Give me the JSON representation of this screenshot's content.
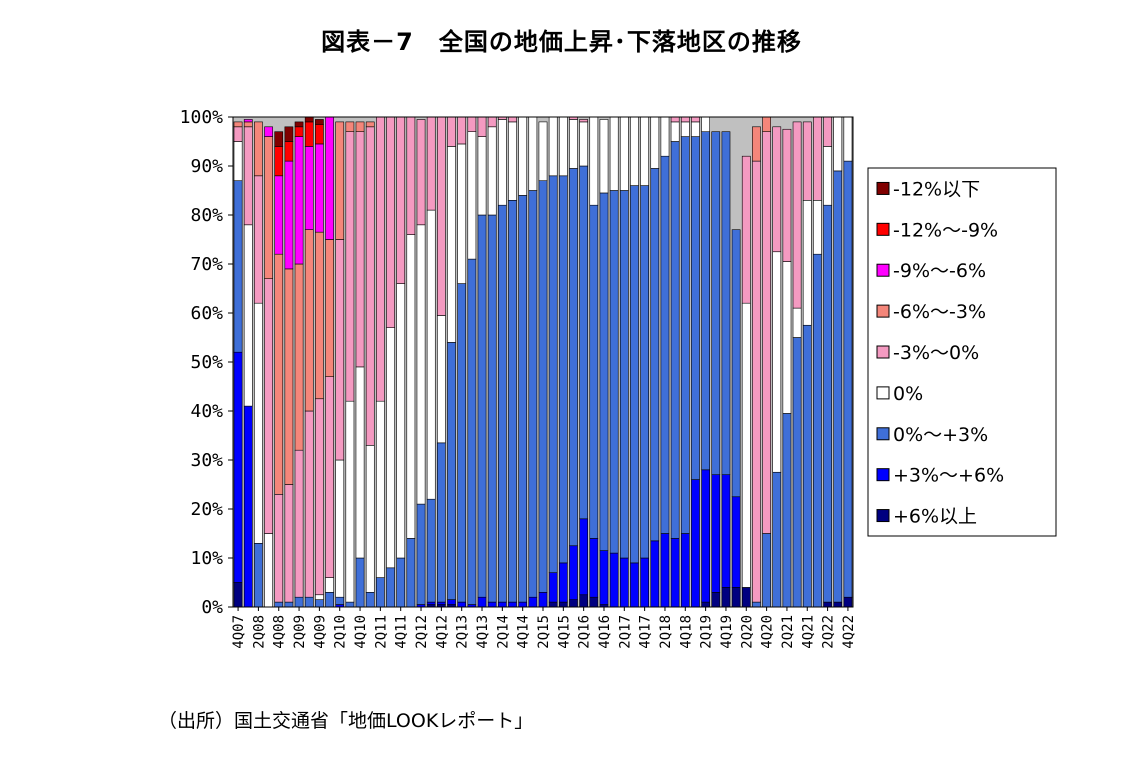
{
  "title": "図表－7　全国の地価上昇･下落地区の推移",
  "source": "（出所）国土交通省「地価LOOKレポート」",
  "chart_data": {
    "type": "bar",
    "stacked": true,
    "title": "図表－7　全国の地価上昇･下落地区の推移",
    "xlabel": "",
    "ylabel": "",
    "ylim": [
      0,
      100
    ],
    "yticks": [
      "0%",
      "10%",
      "20%",
      "30%",
      "40%",
      "50%",
      "60%",
      "70%",
      "80%",
      "90%",
      "100%"
    ],
    "legend_position": "right",
    "categories": [
      "4Q07",
      "1Q08",
      "2Q08",
      "3Q08",
      "4Q08",
      "1Q09",
      "2Q09",
      "3Q09",
      "4Q09",
      "1Q10",
      "2Q10",
      "3Q10",
      "4Q10",
      "1Q11",
      "2Q11",
      "3Q11",
      "4Q11",
      "1Q12",
      "2Q12",
      "3Q12",
      "4Q12",
      "1Q13",
      "2Q13",
      "3Q13",
      "4Q13",
      "1Q14",
      "2Q14",
      "3Q14",
      "4Q14",
      "1Q15",
      "2Q15",
      "3Q15",
      "4Q15",
      "1Q16",
      "2Q16",
      "3Q16",
      "4Q16",
      "1Q17",
      "2Q17",
      "3Q17",
      "4Q17",
      "1Q18",
      "2Q18",
      "3Q18",
      "4Q18",
      "1Q19",
      "2Q19",
      "3Q19",
      "4Q19",
      "1Q20",
      "2Q20",
      "3Q20",
      "4Q20",
      "1Q21",
      "2Q21",
      "3Q21",
      "4Q21",
      "1Q22",
      "2Q22",
      "3Q22",
      "4Q22"
    ],
    "tick_labels": [
      "4Q07",
      "2Q08",
      "4Q08",
      "2Q09",
      "4Q09",
      "2Q10",
      "4Q10",
      "2Q11",
      "4Q11",
      "2Q12",
      "4Q12",
      "2Q13",
      "4Q13",
      "2Q14",
      "4Q14",
      "2Q15",
      "4Q15",
      "2Q16",
      "4Q16",
      "2Q17",
      "4Q17",
      "2Q18",
      "4Q18",
      "2Q19",
      "4Q19",
      "2Q20",
      "4Q20",
      "2Q21",
      "4Q21",
      "2Q22",
      "4Q22"
    ],
    "series": [
      {
        "name": "+6%以上",
        "color": "#000080",
        "values": [
          5,
          0,
          0,
          0,
          0,
          0,
          0,
          0,
          0,
          0,
          0,
          0,
          0,
          0,
          0,
          0,
          0,
          0,
          0,
          0.5,
          0.5,
          0.5,
          0,
          0,
          0,
          0,
          0,
          0,
          0,
          0,
          0,
          1,
          1,
          1.5,
          2.5,
          2,
          0.5,
          0,
          0,
          0,
          0,
          0,
          0,
          0,
          0,
          0,
          1,
          3,
          4,
          4,
          4,
          0,
          0,
          0,
          0,
          0,
          0,
          0,
          1,
          1,
          2
        ]
      },
      {
        "name": "+3%～+6%",
        "color": "#0000FF",
        "values": [
          47,
          41,
          0,
          0,
          0,
          0,
          0,
          0,
          0,
          0,
          0.5,
          0,
          0,
          0,
          0,
          0,
          0,
          0,
          0.5,
          0.5,
          0.5,
          1,
          1,
          0.5,
          2,
          1,
          1,
          1,
          1,
          2,
          3,
          6,
          8,
          11,
          15.5,
          12,
          11,
          11,
          10,
          9,
          10,
          13.5,
          15,
          14,
          15,
          26,
          27,
          24,
          23,
          18.5,
          0,
          0,
          0,
          0,
          0,
          0,
          0,
          0,
          0,
          0,
          0
        ]
      },
      {
        "name": "0%～+3%",
        "color": "#3F6FD8",
        "values": [
          35,
          0,
          13,
          0,
          1,
          1,
          2,
          2,
          1.5,
          3,
          1.5,
          1,
          10,
          3,
          6,
          8,
          10,
          14,
          20.5,
          21,
          32.5,
          52.5,
          65,
          70.5,
          78,
          79,
          81,
          82,
          83,
          83,
          84,
          81,
          79,
          77,
          72,
          68,
          73,
          74,
          75,
          77,
          76,
          76,
          77,
          81,
          81,
          70,
          69,
          70,
          70,
          54.5,
          0,
          1,
          15,
          27.5,
          39.5,
          55,
          57.5,
          72,
          81,
          88,
          89
        ]
      },
      {
        "name": "0%",
        "color": "#FFFFFF",
        "values": [
          8,
          37,
          49,
          15,
          0,
          0,
          0,
          0,
          1,
          3,
          28,
          41,
          39,
          30,
          36,
          49,
          56,
          62,
          57,
          59,
          26,
          40,
          28.5,
          26,
          16,
          18,
          17.5,
          16,
          16,
          15,
          12,
          12,
          12,
          10,
          9,
          18,
          15,
          15,
          15,
          14,
          14,
          10.5,
          8,
          4,
          3,
          3,
          3,
          0,
          0,
          0,
          58,
          0,
          0,
          45,
          31,
          6,
          25.5,
          11,
          12,
          11,
          9
        ]
      },
      {
        "name": "-3%～0%",
        "color": "#F49AC1",
        "values": [
          3,
          20,
          26,
          52,
          22,
          24,
          30,
          38,
          40,
          41,
          45,
          55,
          48,
          65,
          58,
          43,
          34,
          24,
          21.5,
          19,
          40.5,
          6,
          5.5,
          3,
          4,
          2,
          0.5,
          1,
          0,
          0,
          0,
          0,
          0,
          0.5,
          0.5,
          0,
          0,
          0,
          0,
          0,
          0,
          0,
          0,
          1,
          1,
          1,
          0,
          0,
          0,
          0,
          30,
          90,
          82,
          25.5,
          27,
          38,
          16,
          17,
          6,
          0,
          0
        ]
      },
      {
        "name": "-6%～-3%",
        "color": "#F4867A",
        "values": [
          1,
          1,
          11,
          29,
          49,
          44,
          38,
          37,
          34,
          28,
          24,
          2,
          2,
          1,
          0,
          0,
          0,
          0,
          0,
          0,
          0,
          0,
          0,
          0,
          0,
          0,
          0,
          0,
          0,
          0,
          0,
          0,
          0,
          0,
          0,
          0,
          0,
          0,
          0,
          0,
          0,
          0,
          0,
          0,
          0,
          0,
          0,
          0,
          0,
          0,
          0,
          7,
          3,
          0,
          0,
          0,
          0,
          0,
          0,
          0,
          0
        ]
      },
      {
        "name": "-9%～-6%",
        "color": "#FF00FF",
        "values": [
          0,
          0.5,
          0,
          2,
          16,
          22,
          26,
          17,
          18,
          25,
          0,
          0,
          0,
          0,
          0,
          0,
          0,
          0,
          0,
          0,
          0,
          0,
          0,
          0,
          0,
          0,
          0,
          0,
          0,
          0,
          0,
          0,
          0,
          0,
          0,
          0,
          0,
          0,
          0,
          0,
          0,
          0,
          0,
          0,
          0,
          0,
          0,
          0,
          0,
          0,
          0,
          0,
          0,
          0,
          0,
          0,
          0,
          0,
          0,
          0,
          0
        ]
      },
      {
        "name": "-12%～-9%",
        "color": "#FF0000",
        "values": [
          0,
          0,
          0,
          0,
          6,
          4,
          2,
          5,
          4,
          0,
          0,
          0,
          0,
          0,
          0,
          0,
          0,
          0,
          0,
          0,
          0,
          0,
          0,
          0,
          0,
          0,
          0,
          0,
          0,
          0,
          0,
          0,
          0,
          0,
          0,
          0,
          0,
          0,
          0,
          0,
          0,
          0,
          0,
          0,
          0,
          0,
          0,
          0,
          0,
          0,
          0,
          0,
          0,
          0,
          0,
          0,
          0,
          0,
          0,
          0,
          0
        ]
      },
      {
        "name": "-12%以下",
        "color": "#800000",
        "values": [
          0,
          0,
          0,
          0,
          3,
          3,
          1,
          1,
          1,
          0,
          0,
          0,
          0,
          0,
          0,
          0,
          0,
          0,
          0,
          0,
          0,
          0,
          0,
          0,
          0,
          0,
          0,
          0,
          0,
          0,
          0,
          0,
          0,
          0,
          0,
          0,
          0,
          0,
          0,
          0,
          0,
          0,
          0,
          0,
          0,
          0,
          0,
          0,
          0,
          0,
          0,
          0,
          0,
          0,
          0,
          0,
          0,
          0,
          0,
          0,
          0
        ]
      }
    ],
    "legend_order": [
      "-12%以下",
      "-12%～-9%",
      "-9%～-6%",
      "-6%～-3%",
      "-3%～0%",
      "0%",
      "0%～+3%",
      "+3%～+6%",
      "+6%以上"
    ]
  }
}
